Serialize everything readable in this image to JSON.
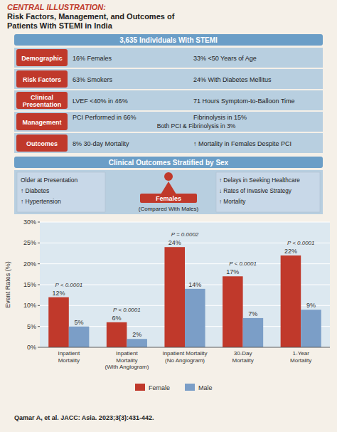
{
  "chart_data": {
    "type": "bar",
    "title": [
      "CENTRAL ILLUSTRATION:",
      "Risk Factors, Management, and Outcomes of",
      "Patients With STEMI in India"
    ],
    "annotations": {
      "banner": "3,635 Individuals With STEMI",
      "rows": [
        {
          "label": "Demographic",
          "col1": "16% Females",
          "col2": "33% <50 Years of Age"
        },
        {
          "label": "Risk Factors",
          "col1": "63% Smokers",
          "col2": "24% With Diabetes Mellitus"
        },
        {
          "label": "Clinical\nPresentation",
          "col1": "LVEF <40% in 46%",
          "col2": "71 Hours Symptom-to-Balloon Time"
        },
        {
          "label": "Management",
          "col1": "PCI Performed in 66%",
          "col2": "Fibrinolysis in 15%",
          "extra": "Both PCI & Fibrinolysis in 3%"
        },
        {
          "label": "Outcomes",
          "col1": "8% 30-day Mortality",
          "col2": "↑ Mortality in Females Despite PCI"
        }
      ],
      "section": "Clinical Outcomes Stratified by Sex",
      "left_box": [
        "Older at Presentation",
        "↑ Diabetes",
        "↑ Hypertension"
      ],
      "center_label": "Females",
      "center_sub": "(Compared With Males)",
      "right_box": [
        "↑ Delays in Seeking Healthcare",
        "↓ Rates of Invasive Strategy",
        "↑ Mortality"
      ],
      "p_values": [
        "P < 0.0001",
        "P < 0.0001",
        "P = 0.0002",
        "P < 0.0001",
        "P < 0.0001"
      ],
      "citation": "Qamar A, et al. JACC: Asia. 2023;3(3):431-442."
    },
    "categories": [
      "Inpatient\nMortality",
      "Inpatient\nMortality\n(With Angiogram)",
      "Inpatient Mortality\n(No Angiogram)",
      "30-Day\nMortality",
      "1-Year\nMortality"
    ],
    "series": [
      {
        "name": "Female",
        "color": "#c0392b",
        "values": [
          12,
          6,
          24,
          17,
          22
        ],
        "value_labels": [
          "12%",
          "6%",
          "24%",
          "17%",
          "22%"
        ]
      },
      {
        "name": "Male",
        "color": "#7b9ec7",
        "values": [
          5,
          2,
          14,
          7,
          9
        ],
        "value_labels": [
          "5%",
          "2%",
          "14%",
          "7%",
          "9%"
        ]
      }
    ],
    "ylabel": "Event Rates (%)",
    "ylim": [
      0,
      30
    ],
    "yticks": [
      {
        "value": 0,
        "label": "0%"
      },
      {
        "value": 5,
        "label": "5%"
      },
      {
        "value": 10,
        "label": "10%"
      },
      {
        "value": 15,
        "label": "15%"
      },
      {
        "value": 20,
        "label": "20%"
      },
      {
        "value": 25,
        "label": "25%"
      },
      {
        "value": 30,
        "label": "30%"
      }
    ],
    "grid": true,
    "legend": "bottom",
    "data_labels": true
  }
}
